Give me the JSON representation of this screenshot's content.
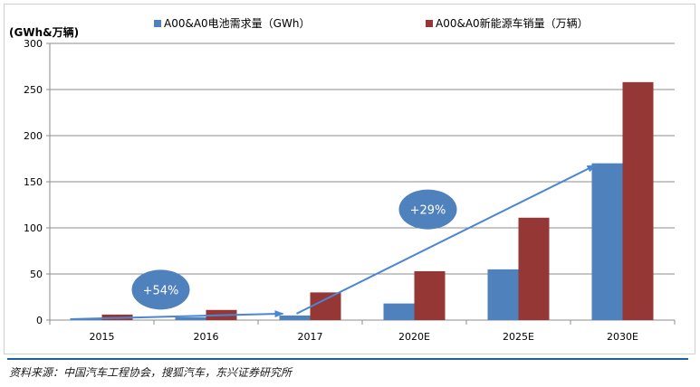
{
  "chart_data": {
    "type": "bar",
    "ylabel": "(GWh&万辆)",
    "ylim": [
      0,
      300
    ],
    "yticks": [
      0,
      50,
      100,
      150,
      200,
      250,
      300
    ],
    "grid": true,
    "legend_placement": "top",
    "categories": [
      "2015",
      "2016",
      "2017",
      "2020E",
      "2025E",
      "2030E"
    ],
    "series": [
      {
        "name": "A00&A0电池需求量（GWh）",
        "color": "#4f81bd",
        "values": [
          1,
          3,
          5,
          18,
          55,
          170
        ]
      },
      {
        "name": "A00&A0新能源车销量（万辆）",
        "color": "#953735",
        "values": [
          6,
          11,
          30,
          53,
          111,
          258
        ]
      }
    ],
    "annotations": [
      {
        "text": "+54%",
        "from": [
          "2015",
          1
        ],
        "to": [
          "2017",
          7
        ],
        "bubble_at": [
          "2016",
          33
        ]
      },
      {
        "text": "+29%",
        "from": [
          "2017",
          7
        ],
        "to": [
          "2030E",
          168
        ],
        "bubble_at": [
          "2020E",
          120
        ]
      }
    ],
    "arrow_color": "#4a86d4",
    "bubble_color": "#4f81bd"
  },
  "source": "资料来源：中国汽车工程协会，搜狐汽车，东兴证券研究所"
}
